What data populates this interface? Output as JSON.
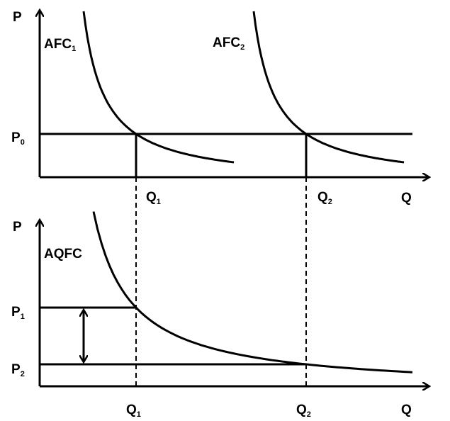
{
  "top_panel": {
    "y_axis_label": "P",
    "x_axis_label": "Q",
    "price_label": {
      "main": "P",
      "sub": "0"
    },
    "curve_labels": [
      {
        "main": "AFC",
        "sub": "1"
      },
      {
        "main": "AFC",
        "sub": "2"
      }
    ],
    "quantity_labels": [
      {
        "main": "Q",
        "sub": "1"
      },
      {
        "main": "Q",
        "sub": "2"
      }
    ]
  },
  "bottom_panel": {
    "y_axis_label": "P",
    "x_axis_label": "Q",
    "curve_label": "AQFC",
    "price_labels": [
      {
        "main": "P",
        "sub": "1"
      },
      {
        "main": "P",
        "sub": "2"
      }
    ],
    "quantity_labels": [
      {
        "main": "Q",
        "sub": "1"
      },
      {
        "main": "Q",
        "sub": "2"
      }
    ]
  }
}
